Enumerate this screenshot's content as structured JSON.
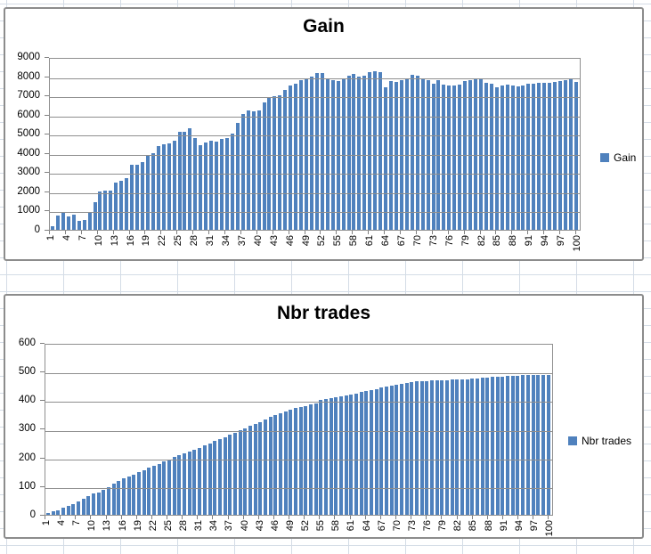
{
  "sheet": {
    "background_color": "#ffffff",
    "grid_color": "#d4dce6"
  },
  "styles": {
    "bar_color": "#4f81bd",
    "gridline_color": "#8f8f8f",
    "axis_color": "#808080",
    "chart_border_color": "#8c8c8c",
    "title_color": "#000000",
    "label_color": "#000000"
  },
  "chart_data": [
    {
      "type": "bar",
      "title": "Gain",
      "legend": {
        "label": "Gain",
        "position": "right",
        "swatch_color": "#4f81bd"
      },
      "xlabel": "",
      "ylabel": "",
      "ylim": [
        0,
        9000
      ],
      "ytick_step": 1000,
      "yticks": [
        0,
        1000,
        2000,
        3000,
        4000,
        5000,
        6000,
        7000,
        8000,
        9000
      ],
      "xtick_labels": [
        1,
        4,
        7,
        10,
        13,
        16,
        19,
        22,
        25,
        28,
        31,
        34,
        37,
        40,
        43,
        46,
        49,
        52,
        55,
        58,
        61,
        64,
        67,
        70,
        73,
        76,
        79,
        82,
        85,
        88,
        91,
        94,
        97,
        100
      ],
      "grid": true,
      "categories": [
        1,
        2,
        3,
        4,
        5,
        6,
        7,
        8,
        9,
        10,
        11,
        12,
        13,
        14,
        15,
        16,
        17,
        18,
        19,
        20,
        21,
        22,
        23,
        24,
        25,
        26,
        27,
        28,
        29,
        30,
        31,
        32,
        33,
        34,
        35,
        36,
        37,
        38,
        39,
        40,
        41,
        42,
        43,
        44,
        45,
        46,
        47,
        48,
        49,
        50,
        51,
        52,
        53,
        54,
        55,
        56,
        57,
        58,
        59,
        60,
        61,
        62,
        63,
        64,
        65,
        66,
        67,
        68,
        69,
        70,
        71,
        72,
        73,
        74,
        75,
        76,
        77,
        78,
        79,
        80,
        81,
        82,
        83,
        84,
        85,
        86,
        87,
        88,
        89,
        90,
        91,
        92,
        93,
        94,
        95,
        96,
        97,
        98,
        99,
        100
      ],
      "values": [
        200,
        740,
        940,
        680,
        820,
        450,
        510,
        910,
        1450,
        2020,
        2070,
        2070,
        2480,
        2580,
        2740,
        3440,
        3400,
        3580,
        3880,
        4040,
        4400,
        4480,
        4540,
        4700,
        5150,
        5160,
        5340,
        4850,
        4440,
        4580,
        4700,
        4650,
        4800,
        4820,
        5080,
        5630,
        6080,
        6300,
        6230,
        6300,
        6700,
        6980,
        7050,
        7090,
        7380,
        7580,
        7700,
        7890,
        7940,
        8040,
        8260,
        8230,
        7990,
        7890,
        7840,
        7990,
        8090,
        8210,
        8080,
        8090,
        8290,
        8330,
        8280,
        7500,
        7840,
        7790,
        7890,
        7990,
        8140,
        8090,
        7940,
        7890,
        7690,
        7890,
        7640,
        7590,
        7590,
        7650,
        7840,
        7890,
        7930,
        7990,
        7740,
        7690,
        7490,
        7590,
        7640,
        7590,
        7540,
        7590,
        7690,
        7690,
        7740,
        7740,
        7740,
        7790,
        7840,
        7890,
        7940,
        7790
      ]
    },
    {
      "type": "bar",
      "title": "Nbr trades",
      "legend": {
        "label": "Nbr trades",
        "position": "right",
        "swatch_color": "#4f81bd"
      },
      "xlabel": "",
      "ylabel": "",
      "ylim": [
        0,
        600
      ],
      "ytick_step": 100,
      "yticks": [
        0,
        100,
        200,
        300,
        400,
        500,
        600
      ],
      "xtick_labels": [
        1,
        4,
        7,
        10,
        13,
        16,
        19,
        22,
        25,
        28,
        31,
        34,
        37,
        40,
        43,
        46,
        49,
        52,
        55,
        58,
        61,
        64,
        67,
        70,
        73,
        76,
        79,
        82,
        85,
        88,
        91,
        94,
        97,
        100
      ],
      "grid": true,
      "categories": [
        1,
        2,
        3,
        4,
        5,
        6,
        7,
        8,
        9,
        10,
        11,
        12,
        13,
        14,
        15,
        16,
        17,
        18,
        19,
        20,
        21,
        22,
        23,
        24,
        25,
        26,
        27,
        28,
        29,
        30,
        31,
        32,
        33,
        34,
        35,
        36,
        37,
        38,
        39,
        40,
        41,
        42,
        43,
        44,
        45,
        46,
        47,
        48,
        49,
        50,
        51,
        52,
        53,
        54,
        55,
        56,
        57,
        58,
        59,
        60,
        61,
        62,
        63,
        64,
        65,
        66,
        67,
        68,
        69,
        70,
        71,
        72,
        73,
        74,
        75,
        76,
        77,
        78,
        79,
        80,
        81,
        82,
        83,
        84,
        85,
        86,
        87,
        88,
        89,
        90,
        91,
        92,
        93,
        94,
        95,
        96,
        97,
        98,
        99,
        100
      ],
      "values": [
        7,
        12,
        16,
        24,
        30,
        38,
        46,
        56,
        66,
        74,
        80,
        88,
        98,
        110,
        120,
        128,
        136,
        142,
        150,
        158,
        166,
        174,
        180,
        188,
        196,
        204,
        212,
        218,
        224,
        230,
        236,
        244,
        252,
        260,
        266,
        274,
        282,
        290,
        298,
        306,
        314,
        320,
        328,
        336,
        344,
        352,
        358,
        364,
        370,
        376,
        380,
        384,
        388,
        392,
        405,
        408,
        410,
        414,
        418,
        420,
        424,
        428,
        432,
        436,
        440,
        444,
        448,
        452,
        456,
        460,
        463,
        466,
        468,
        470,
        471,
        472,
        473,
        474,
        475,
        475,
        476,
        477,
        478,
        479,
        480,
        482,
        484,
        485,
        486,
        487,
        488,
        489,
        490,
        491,
        492,
        492,
        493,
        493,
        494,
        494
      ]
    }
  ]
}
